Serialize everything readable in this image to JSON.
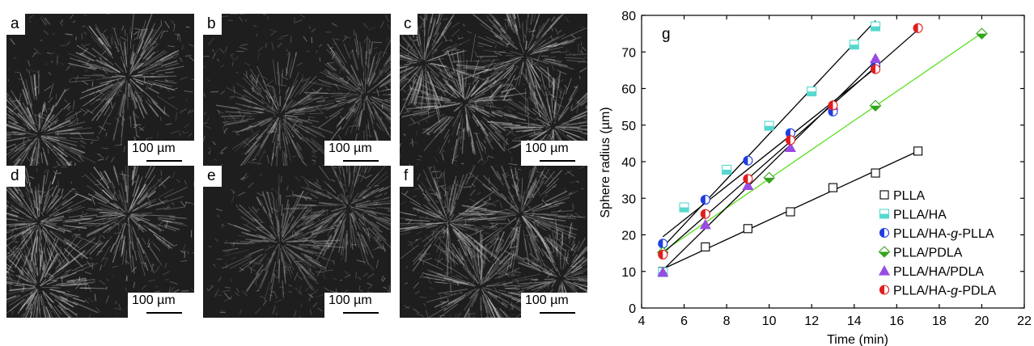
{
  "panels": {
    "a": {
      "label": "a",
      "scale": "100 µm"
    },
    "b": {
      "label": "b",
      "scale": "100 µm"
    },
    "c": {
      "label": "c",
      "scale": "100 µm"
    },
    "d": {
      "label": "d",
      "scale": "100 µm"
    },
    "e": {
      "label": "e",
      "scale": "100 µm"
    },
    "f": {
      "label": "f",
      "scale": "100 µm"
    }
  },
  "chart_data": {
    "type": "scatter",
    "panel_label": "g",
    "xlabel": "Time (min)",
    "ylabel": "Sphere radius (µm)",
    "xlim": [
      4,
      22
    ],
    "ylim": [
      0,
      80
    ],
    "xticks": [
      4,
      6,
      8,
      10,
      12,
      14,
      16,
      18,
      20,
      22
    ],
    "yticks": [
      0,
      10,
      20,
      30,
      40,
      50,
      60,
      70,
      80
    ],
    "grid": false,
    "legend_position": "bottom-right",
    "series": [
      {
        "name": "PLLA",
        "marker": "open-square",
        "color": "#000000",
        "fit_color": "#000000",
        "x": [
          5,
          7,
          9,
          11,
          13,
          15,
          17
        ],
        "y": [
          10,
          16.7,
          21.7,
          26.3,
          32.9,
          36.9,
          42.9
        ]
      },
      {
        "name": "PLLA/HA",
        "marker": "half-square",
        "color": "#57d8cf",
        "fit_color": "#000000",
        "x": [
          5,
          6,
          8,
          10,
          12,
          14,
          15
        ],
        "y": [
          9.8,
          27.5,
          37.8,
          49.8,
          59.2,
          72.0,
          77.0
        ]
      },
      {
        "name": "PLLA/HA-g-PLLA",
        "marker": "half-circle",
        "color": "#1f3fe0",
        "fit_color": "#000000",
        "x": [
          5,
          7,
          9,
          11,
          13,
          15
        ],
        "y": [
          17.6,
          29.6,
          40.3,
          47.8,
          53.7,
          66.2
        ]
      },
      {
        "name": "PLLA/PDLA",
        "marker": "half-diamond",
        "color": "#35a31d",
        "fit_color": "#5be01e",
        "x": [
          5,
          10,
          15,
          20
        ],
        "y": [
          15.2,
          35.6,
          55.3,
          75.0
        ]
      },
      {
        "name": "PLLA/HA/PDLA",
        "marker": "triangle",
        "color": "#9a4be3",
        "fit_color": "#000000",
        "x": [
          5,
          7,
          9,
          11,
          13,
          15
        ],
        "y": [
          9.8,
          22.8,
          33.5,
          43.9,
          55.4,
          68.2
        ]
      },
      {
        "name": "PLLA/HA-g-PDLA",
        "marker": "half-circle",
        "color": "#e11d1d",
        "fit_color": "#000000",
        "x": [
          5,
          7,
          9,
          11,
          13,
          15,
          17
        ],
        "y": [
          14.6,
          25.7,
          35.3,
          45.9,
          55.4,
          65.3,
          76.5
        ]
      }
    ]
  }
}
